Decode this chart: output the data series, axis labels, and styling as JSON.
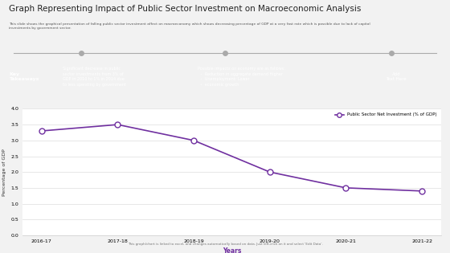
{
  "title": "Graph Representing Impact of Public Sector Investment on Macroeconomic Analysis",
  "subtitle": "This slide shows the graphical presentation of falling public sector investment affect on macroeconomy which shows decreasing percentage of GDP at a very fast rate which is possible due to lack of capital\ninvestments by government sector.",
  "chart_area_bg": "#ffffff",
  "page_bg": "#f2f2f2",
  "header_bg": "#1a2e4a",
  "categories": [
    "2016-17",
    "2017-18",
    "2018-19",
    "2019-20",
    "2020-21",
    "2021-22"
  ],
  "values": [
    3.3,
    3.5,
    3.0,
    2.0,
    1.5,
    1.4
  ],
  "ylabel": "Percentage of GDP",
  "xlabel": "Years",
  "xlabel_color": "#7030a0",
  "legend_label": "Public Sector Net Investment (% of GDP)",
  "line_color": "#7030a0",
  "marker": "o",
  "marker_size": 5,
  "ylim": [
    0,
    4
  ],
  "yticks": [
    0,
    0.5,
    1,
    1.5,
    2,
    2.5,
    3,
    3.5,
    4
  ],
  "grid_color": "#dddddd",
  "footnote": "This graph/chart is linked to excel, and changes automatically based on data. Just left-click on it and select 'Edit Data'.",
  "key_takeaways_label": "Key\nTakeaways",
  "banner_dots": [
    0.18,
    0.5,
    0.87
  ],
  "banner_text1": "Significant decrease in public\nsector investments from 3% of\nGDP in 2010 to 1% in 2014 due\nto less spending by government",
  "banner_text2": "Possible impacts on economy are as follows:\n  ◦  Reduction in aggregate demand Higher\n  ◦  Unemployment: Lower\n  ◦  economic growth",
  "banner_text3": "Add\nText Here"
}
